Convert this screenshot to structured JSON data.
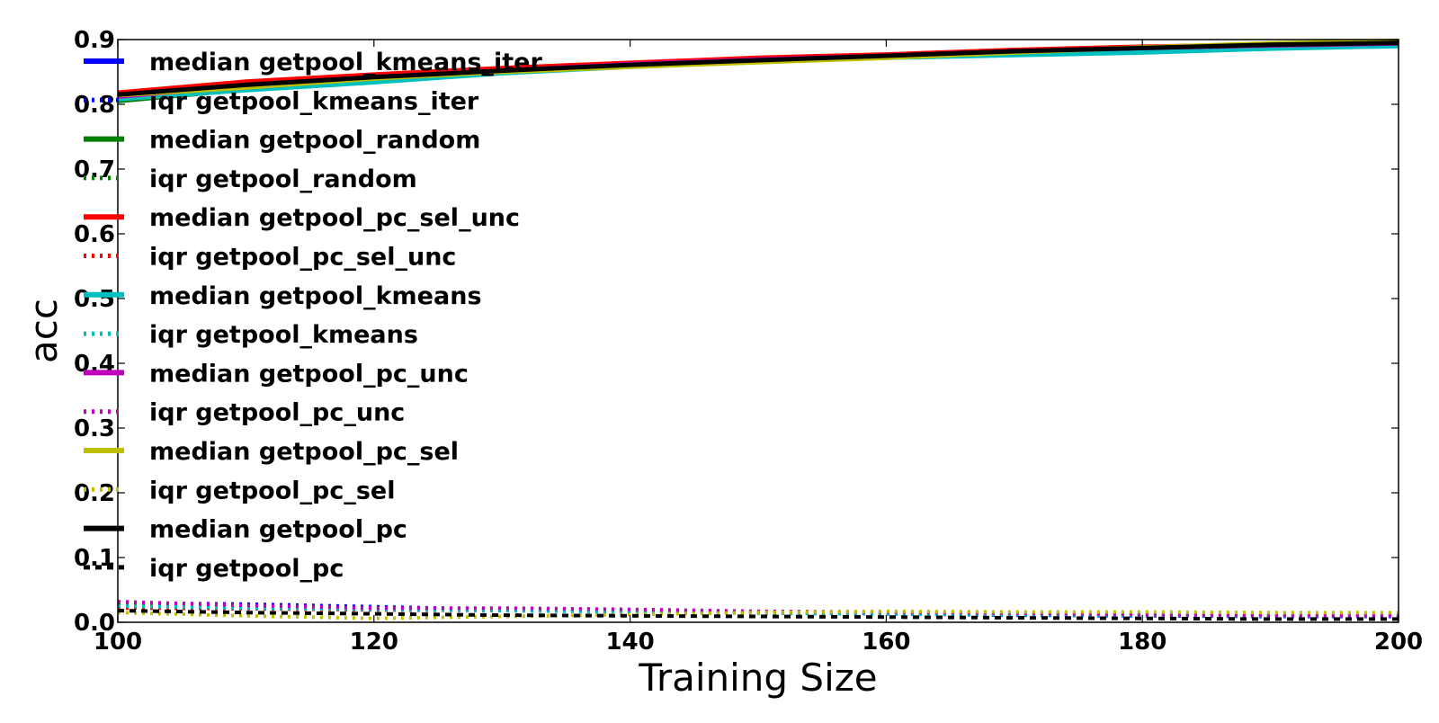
{
  "chart_data": {
    "type": "line",
    "title": "",
    "xlabel": "Training Size",
    "ylabel": "acc",
    "xlim": [
      100,
      200
    ],
    "ylim": [
      0.0,
      0.9
    ],
    "xticks": [
      100,
      120,
      140,
      160,
      180,
      200
    ],
    "xtick_labels": [
      "100",
      "120",
      "140",
      "160",
      "180",
      "200"
    ],
    "yticks": [
      0.0,
      0.1,
      0.2,
      0.3,
      0.4,
      0.5,
      0.6,
      0.7,
      0.8,
      0.9
    ],
    "ytick_labels": [
      "0.0",
      "0.1",
      "0.2",
      "0.3",
      "0.4",
      "0.5",
      "0.6",
      "0.7",
      "0.8",
      "0.9"
    ],
    "grid": false,
    "legend": "top-left",
    "x": [
      100,
      110,
      120,
      130,
      140,
      150,
      160,
      170,
      180,
      190,
      200
    ],
    "series": [
      {
        "name": "median getpool_kmeans_iter",
        "color": "#0000ff",
        "style": "solid",
        "values": [
          0.81,
          0.825,
          0.838,
          0.85,
          0.86,
          0.868,
          0.874,
          0.88,
          0.884,
          0.889,
          0.893
        ]
      },
      {
        "name": "iqr getpool_kmeans_iter",
        "color": "#0000ff",
        "style": "dotted",
        "values": [
          0.03,
          0.028,
          0.024,
          0.02,
          0.017,
          0.015,
          0.013,
          0.011,
          0.01,
          0.009,
          0.009
        ]
      },
      {
        "name": "median getpool_random",
        "color": "#008000",
        "style": "solid",
        "values": [
          0.805,
          0.823,
          0.836,
          0.849,
          0.86,
          0.87,
          0.876,
          0.882,
          0.887,
          0.891,
          0.895
        ]
      },
      {
        "name": "iqr getpool_random",
        "color": "#008000",
        "style": "dotted",
        "values": [
          0.027,
          0.025,
          0.022,
          0.019,
          0.017,
          0.015,
          0.013,
          0.012,
          0.011,
          0.01,
          0.01
        ]
      },
      {
        "name": "median getpool_pc_sel_unc",
        "color": "#ff0000",
        "style": "solid",
        "values": [
          0.818,
          0.835,
          0.846,
          0.856,
          0.864,
          0.872,
          0.877,
          0.884,
          0.889,
          0.892,
          0.896
        ]
      },
      {
        "name": "iqr getpool_pc_sel_unc",
        "color": "#ff0000",
        "style": "dotted",
        "values": [
          0.022,
          0.021,
          0.019,
          0.018,
          0.017,
          0.016,
          0.015,
          0.014,
          0.013,
          0.012,
          0.012
        ]
      },
      {
        "name": "median getpool_kmeans",
        "color": "#00bfbf",
        "style": "solid",
        "values": [
          0.808,
          0.822,
          0.834,
          0.848,
          0.858,
          0.866,
          0.872,
          0.876,
          0.88,
          0.886,
          0.89
        ]
      },
      {
        "name": "iqr getpool_kmeans",
        "color": "#00bfbf",
        "style": "dotted",
        "values": [
          0.025,
          0.022,
          0.02,
          0.018,
          0.016,
          0.014,
          0.013,
          0.012,
          0.011,
          0.01,
          0.01
        ]
      },
      {
        "name": "median getpool_pc_unc",
        "color": "#bf00bf",
        "style": "solid",
        "values": [
          0.812,
          0.828,
          0.842,
          0.852,
          0.862,
          0.869,
          0.875,
          0.882,
          0.887,
          0.891,
          0.894
        ]
      },
      {
        "name": "iqr getpool_pc_unc",
        "color": "#bf00bf",
        "style": "dotted",
        "values": [
          0.032,
          0.026,
          0.022,
          0.022,
          0.02,
          0.017,
          0.016,
          0.014,
          0.012,
          0.011,
          0.01
        ]
      },
      {
        "name": "median getpool_pc_sel",
        "color": "#bfbf00",
        "style": "solid",
        "values": [
          0.814,
          0.826,
          0.84,
          0.85,
          0.858,
          0.865,
          0.872,
          0.88,
          0.888,
          0.894,
          0.898
        ]
      },
      {
        "name": "iqr getpool_pc_sel",
        "color": "#bfbf00",
        "style": "dotted",
        "values": [
          0.015,
          0.01,
          0.006,
          0.009,
          0.012,
          0.015,
          0.017,
          0.016,
          0.016,
          0.015,
          0.015
        ]
      },
      {
        "name": "median getpool_pc",
        "color": "#000000",
        "style": "solid",
        "values": [
          0.815,
          0.83,
          0.842,
          0.852,
          0.861,
          0.868,
          0.875,
          0.882,
          0.887,
          0.892,
          0.895
        ]
      },
      {
        "name": "iqr getpool_pc",
        "color": "#000000",
        "style": "dashed",
        "values": [
          0.018,
          0.015,
          0.013,
          0.011,
          0.01,
          0.009,
          0.008,
          0.007,
          0.006,
          0.005,
          0.005
        ]
      }
    ]
  }
}
